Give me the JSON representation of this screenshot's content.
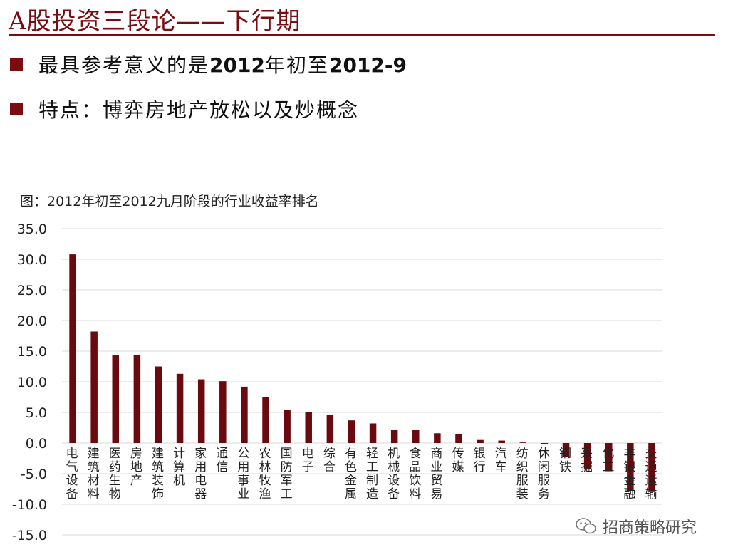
{
  "slide": {
    "title": "A股投资三段论——下行期",
    "bullets": [
      {
        "pre": "最具参考意义的是",
        "b1": "2012",
        "mid": "年初至",
        "b2": "2012-9"
      },
      {
        "pre": "特点：博弈房地产放松以及炒概念",
        "b1": "",
        "mid": "",
        "b2": ""
      }
    ]
  },
  "chart_title": "图：2012年初至2012九月阶段的行业收益率排名",
  "watermark": {
    "text": "招商策略研究",
    "icon": "wechat-icon"
  },
  "colors": {
    "bar": "#6b0a0e",
    "title": "#7a0c12",
    "grid": "#d9d9d9"
  },
  "chart_data": {
    "type": "bar",
    "title": "图：2012年初至2012九月阶段的行业收益率排名",
    "xlabel": "",
    "ylabel": "",
    "ylim": [
      -15,
      35
    ],
    "yticks": [
      "35.0",
      "30.0",
      "25.0",
      "20.0",
      "15.0",
      "10.0",
      "5.0",
      "0.0",
      "-5.0",
      "-10.0",
      "-15.0"
    ],
    "grid": true,
    "categories": [
      "电气设备",
      "建筑材料",
      "医药生物",
      "房地产",
      "建筑装饰",
      "计算机",
      "家用电器",
      "通信",
      "公用事业",
      "农林牧渔",
      "国防军工",
      "电子",
      "综合",
      "有色金属",
      "轻工制造",
      "机械设备",
      "食品饮料",
      "商业贸易",
      "传媒",
      "银行",
      "汽车",
      "纺织服装",
      "休闲服务",
      "钢铁",
      "采掘",
      "化工",
      "非银金融",
      "交通运输"
    ],
    "values": [
      30.8,
      18.2,
      14.4,
      14.4,
      12.5,
      11.3,
      10.4,
      10.1,
      9.2,
      7.5,
      5.4,
      5.1,
      4.6,
      3.7,
      3.2,
      2.2,
      2.2,
      1.6,
      1.5,
      0.5,
      0.4,
      0.1,
      -0.2,
      -2.3,
      -4.3,
      -4.6,
      -7.8,
      -8.0
    ]
  }
}
